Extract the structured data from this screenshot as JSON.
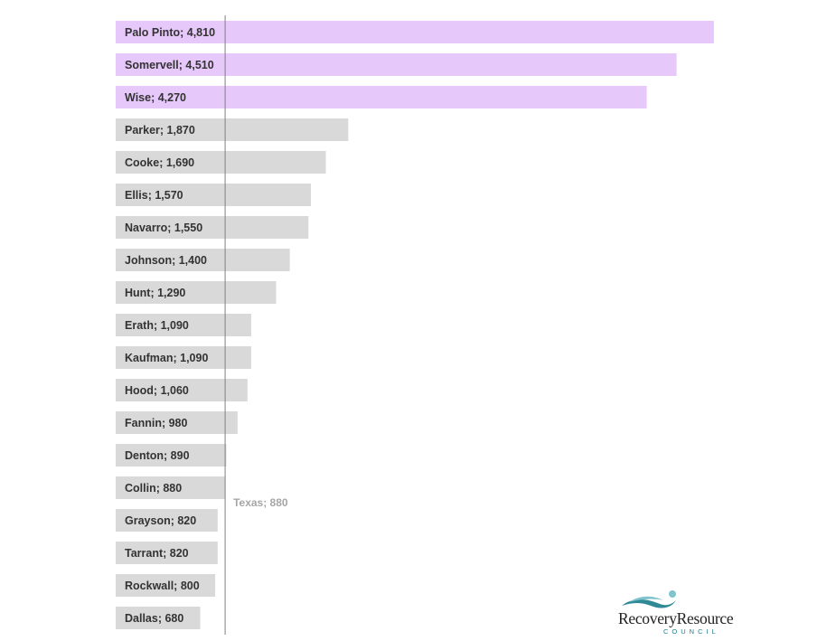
{
  "chart_data": {
    "type": "bar",
    "orientation": "horizontal",
    "categories": [
      "Palo Pinto",
      "Somervell",
      "Wise",
      "Parker",
      "Cooke",
      "Ellis",
      "Navarro",
      "Johnson",
      "Hunt",
      "Erath",
      "Kaufman",
      "Hood",
      "Fannin",
      "Denton",
      "Collin",
      "Grayson",
      "Tarrant",
      "Rockwall",
      "Dallas"
    ],
    "values": [
      4810,
      4510,
      4270,
      1870,
      1690,
      1570,
      1550,
      1400,
      1290,
      1090,
      1090,
      1060,
      980,
      890,
      880,
      820,
      820,
      800,
      680
    ],
    "labels": [
      "Palo Pinto; 4,810",
      "Somervell; 4,510",
      "Wise; 4,270",
      "Parker; 1,870",
      "Cooke; 1,690",
      "Ellis; 1,570",
      "Navarro; 1,550",
      "Johnson; 1,400",
      "Hunt; 1,290",
      "Erath; 1,090",
      "Kaufman; 1,090",
      "Hood; 1,060",
      "Fannin; 980",
      "Denton; 890",
      "Collin; 880",
      "Grayson; 820",
      "Tarrant; 820",
      "Rockwall; 800",
      "Dallas; 680"
    ],
    "highlight_count": 3,
    "reference": {
      "value": 880,
      "label": "Texas; 880"
    },
    "xlim": [
      0,
      5700
    ],
    "grid": false,
    "legend": "none",
    "colors": {
      "highlight": "#e6c8fa",
      "normal": "#d9d9d9",
      "reference_line": "#7f7f7f",
      "reference_label": "#a6a6a6"
    }
  },
  "logo": {
    "main": "RecoveryResource",
    "sub": "COUNCIL",
    "icon": "swimmer-wave-icon",
    "wave_color": "#2f8a96",
    "dot_color": "#7fc4cc"
  }
}
